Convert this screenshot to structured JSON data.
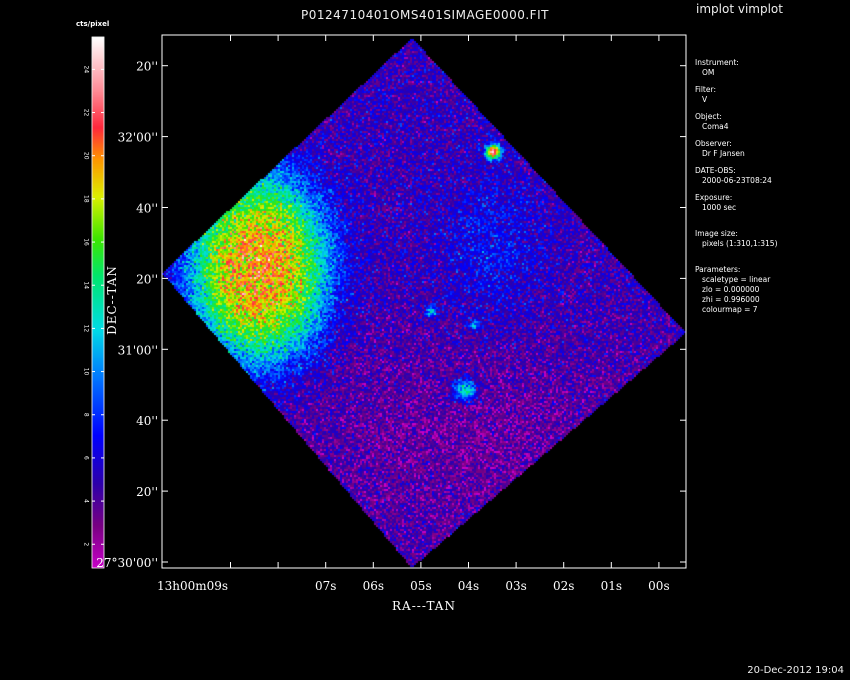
{
  "title": "P0124710401OMS401SIMAGE0000.FIT",
  "task": "implot vimplot",
  "timestamp": "20-Dec-2012 19:04",
  "colorbar": {
    "label": "cts/pixel",
    "ticks": [
      2,
      4,
      6,
      8,
      10,
      12,
      14,
      16,
      18,
      20,
      22,
      24
    ],
    "min": 0.9,
    "max": 25.5
  },
  "info": {
    "instrument_label": "Instrument:",
    "instrument": "OM",
    "filter_label": "Filter:",
    "filter": "V",
    "object_label": "Object:",
    "object": "Coma4",
    "observer_label": "Observer:",
    "observer": "Dr F Jansen",
    "date_obs_label": "DATE-OBS:",
    "date_obs": "2000-06-23T08:24",
    "exposure_label": "Exposure:",
    "exposure": "1000 sec",
    "image_size_label": "Image size:",
    "image_size": "pixels (1:310,1:315)",
    "parameters_label": "Parameters:",
    "params": [
      "scaletype = linear",
      "zlo = 0.000000",
      "zhi = 0.996000",
      "colourmap =    7"
    ]
  },
  "chart_data": {
    "type": "heatmap",
    "title": "P0124710401OMS401SIMAGE0000.FIT",
    "xlabel": "RA---TAN",
    "ylabel": "DEC--TAN",
    "x_ticks": [
      "13h00m09s",
      "07s",
      "06s",
      "05s",
      "04s",
      "03s",
      "02s",
      "01s",
      "00s"
    ],
    "y_ticks": [
      "27°30'00''",
      "20''",
      "40''",
      "31'00''",
      "20''",
      "40''",
      "32'00''",
      "20''"
    ],
    "colorbar_range": [
      0.9,
      25.5
    ],
    "background_cts": 5,
    "bright_region_cts": 20,
    "sources": [
      {
        "ra": "13h00m03.5s",
        "dec": "27°31'56''",
        "peak_cts": 24
      },
      {
        "ra": "13h00m04.1s",
        "dec": "27°30'49''",
        "peak_cts": 14
      },
      {
        "ra": "13h00m04.8s",
        "dec": "27°31'11''",
        "peak_cts": 12
      },
      {
        "ra": "13h00m03.9s",
        "dec": "27°31'07''",
        "peak_cts": 11
      }
    ]
  }
}
